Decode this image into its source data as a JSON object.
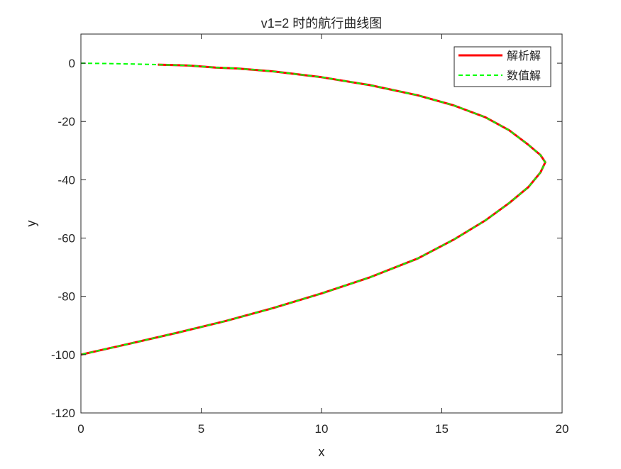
{
  "chart_data": {
    "type": "line",
    "title": "v1=2 时的航行曲线图",
    "xlabel": "x",
    "ylabel": "y",
    "xlim": [
      0,
      20
    ],
    "ylim": [
      -120,
      10
    ],
    "xticks": [
      0,
      5,
      10,
      15,
      20
    ],
    "yticks": [
      0,
      -20,
      -40,
      -60,
      -80,
      -100,
      -120
    ],
    "legend_position": "top-right",
    "series": [
      {
        "name": "解析解",
        "color": "#ff0000",
        "style": "solid",
        "x": [
          3.2,
          4.5,
          5.6,
          6.5,
          8.0,
          10.0,
          12.0,
          14.0,
          15.5,
          16.8,
          17.8,
          18.6,
          19.1,
          19.3,
          19.1,
          18.6,
          17.8,
          16.8,
          15.5,
          14.0,
          12.0,
          10.0,
          8.0,
          6.0,
          4.0,
          2.0,
          0.0
        ],
        "y": [
          -0.5,
          -0.8,
          -1.5,
          -1.8,
          -2.8,
          -4.8,
          -7.5,
          -11.0,
          -14.5,
          -18.5,
          -23.0,
          -28.0,
          -31.5,
          -34.0,
          -37.5,
          -42.5,
          -48.0,
          -54.0,
          -60.5,
          -67.0,
          -73.5,
          -79.0,
          -84.0,
          -88.5,
          -92.5,
          -96.3,
          -100.0
        ]
      },
      {
        "name": "数值解",
        "color": "#00ff00",
        "style": "dashed",
        "x": [
          0.0,
          1.0,
          2.0,
          3.2,
          4.5,
          5.6,
          6.5,
          8.0,
          10.0,
          12.0,
          14.0,
          15.5,
          16.8,
          17.8,
          18.6,
          19.1,
          19.3,
          19.1,
          18.6,
          17.8,
          16.8,
          15.5,
          14.0,
          12.0,
          10.0,
          8.0,
          6.0,
          4.0,
          2.0,
          0.0
        ],
        "y": [
          0.0,
          -0.1,
          -0.25,
          -0.5,
          -0.8,
          -1.5,
          -1.8,
          -2.8,
          -4.8,
          -7.5,
          -11.0,
          -14.5,
          -18.5,
          -23.0,
          -28.0,
          -31.5,
          -34.0,
          -37.5,
          -42.5,
          -48.0,
          -54.0,
          -60.5,
          -67.0,
          -73.5,
          -79.0,
          -84.0,
          -88.5,
          -92.5,
          -96.3,
          -100.0
        ]
      }
    ]
  }
}
